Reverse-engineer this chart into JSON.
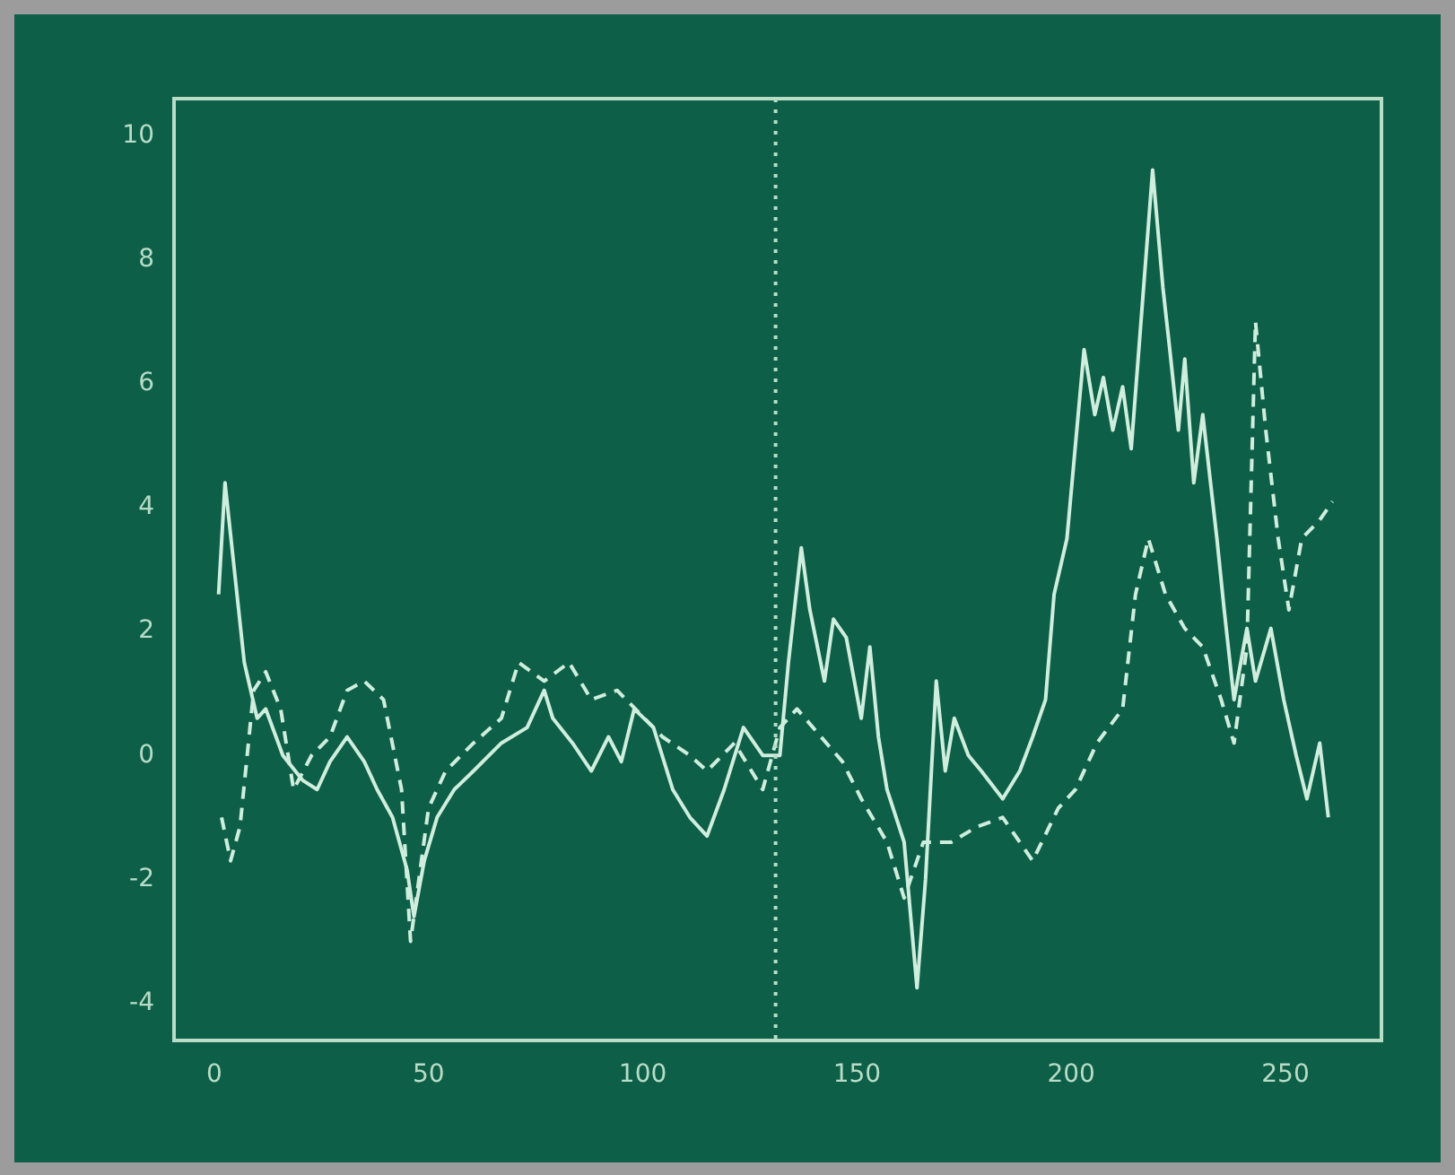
{
  "chart_data": {
    "type": "line",
    "xlim": [
      -9.4,
      272.4
    ],
    "xticks": [
      0,
      50,
      100,
      150,
      200,
      250
    ],
    "ylim": [
      -4.6,
      10.6
    ],
    "yticks": [
      -4,
      -2,
      0,
      2,
      4,
      6,
      8,
      10
    ],
    "grid": false,
    "legend": false,
    "marker": "none",
    "ref_lines": [
      {
        "axis": "x",
        "value": 131,
        "color": "#b8dcc6",
        "line_style": "dotted"
      }
    ],
    "series": [
      {
        "color": "#cfeedd",
        "line_style": "solid",
        "x": [
          1,
          2.5,
          7,
          10,
          12,
          16,
          20.6,
          24,
          27,
          31,
          35,
          38,
          41.6,
          45,
          46.6,
          49,
          52,
          56,
          60.5,
          67,
          73,
          77,
          79,
          83.6,
          88,
          92,
          95,
          98,
          102.5,
          107,
          111,
          115,
          119,
          123.5,
          128,
          132,
          134,
          137,
          139,
          142.4,
          144.5,
          147.5,
          151,
          153,
          155,
          157,
          161,
          164,
          166,
          168.5,
          170.6,
          172.7,
          176,
          179,
          184,
          188,
          191,
          194,
          196,
          199,
          203,
          205.5,
          207.5,
          209.7,
          212,
          214,
          219,
          221.4,
          223,
          225,
          226.5,
          228.6,
          230.7,
          234,
          235.7,
          238,
          241,
          243,
          246.6,
          249.6,
          252.5,
          255,
          258,
          260
        ],
        "values": [
          2.6,
          4.4,
          1.5,
          0.6,
          0.75,
          0,
          -0.4,
          -0.55,
          -0.1,
          0.3,
          -0.1,
          -0.55,
          -1,
          -1.85,
          -2.6,
          -1.7,
          -1,
          -0.55,
          -0.25,
          0.2,
          0.45,
          1.05,
          0.6,
          0.2,
          -0.25,
          0.3,
          -0.1,
          0.75,
          0.45,
          -0.55,
          -1,
          -1.3,
          -0.55,
          0.45,
          0,
          0,
          1.5,
          3.35,
          2.35,
          1.2,
          2.2,
          1.9,
          0.6,
          1.75,
          0.3,
          -0.55,
          -1.4,
          -3.75,
          -2,
          1.2,
          -0.25,
          0.6,
          0,
          -0.25,
          -0.7,
          -0.25,
          0.3,
          0.9,
          2.6,
          3.5,
          6.55,
          5.5,
          6.1,
          5.25,
          5.95,
          4.95,
          9.45,
          7.55,
          6.55,
          5.25,
          6.4,
          4.4,
          5.5,
          3.5,
          2.35,
          0.9,
          2.05,
          1.2,
          2.05,
          0.9,
          0,
          -0.7,
          0.2,
          -1
        ]
      },
      {
        "color": "#cfeedd",
        "line_style": "dashed",
        "x": [
          1.7,
          3.8,
          6,
          9.2,
          12,
          15.5,
          18.5,
          22.7,
          27,
          31,
          35,
          39.5,
          43.7,
          45.8,
          50,
          54,
          60.5,
          67,
          71,
          77,
          82.8,
          88,
          94,
          100.4,
          104.6,
          111,
          115,
          121.4,
          128,
          132,
          136,
          141.6,
          146.6,
          151,
          157,
          161,
          165.5,
          172,
          178,
          184,
          191,
          197,
          201,
          206,
          212,
          215,
          218,
          222,
          226.5,
          230.7,
          235,
          238,
          241,
          243,
          245.4,
          248.3,
          250.8,
          253.8,
          258,
          261
        ],
        "values": [
          -1,
          -1.7,
          -1.15,
          1.05,
          1.35,
          0.75,
          -0.55,
          0,
          0.3,
          1.05,
          1.2,
          0.9,
          -0.55,
          -3,
          -0.85,
          -0.25,
          0.2,
          0.6,
          1.5,
          1.2,
          1.5,
          0.9,
          1.05,
          0.6,
          0.3,
          0,
          -0.25,
          0.2,
          -0.55,
          0.45,
          0.75,
          0.3,
          -0.1,
          -0.7,
          -1.4,
          -2.3,
          -1.4,
          -1.4,
          -1.15,
          -1,
          -1.7,
          -0.85,
          -0.55,
          0.2,
          0.75,
          2.6,
          3.5,
          2.6,
          2.05,
          1.75,
          0.9,
          0.2,
          1.75,
          7,
          5.25,
          3.5,
          2.35,
          3.5,
          3.8,
          4.1
        ]
      }
    ]
  }
}
